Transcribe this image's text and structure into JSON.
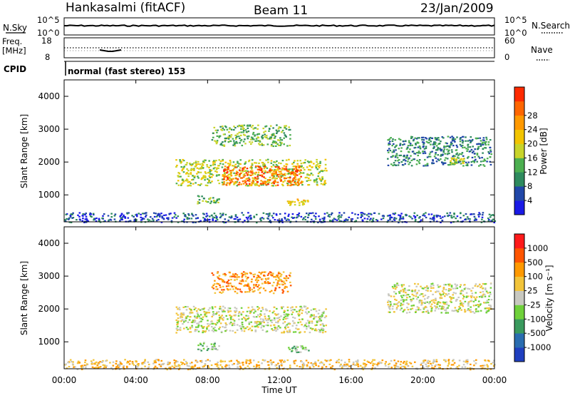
{
  "header": {
    "station": "Hankasalmi (fitACF)",
    "beam": "Beam 11",
    "date": "23/Jan/2009"
  },
  "top_panels": {
    "nsky_label": "N.Sky",
    "nsky_top": "10^5",
    "nsky_bottom": "10^0",
    "nsearch_label": "N.Search",
    "nsearch_top": "10^5",
    "nsearch_bottom": "10^0",
    "freq_label_1": "Freq.",
    "freq_label_2": "[MHz]",
    "freq_top": "18",
    "freq_bottom": "8",
    "nave_top": "60",
    "nave_bottom": "0",
    "nave_label": "Nave",
    "cpid_label": "CPID",
    "cpid_text": "normal (fast stereo) 153"
  },
  "chart_data": [
    {
      "type": "heatmap",
      "name": "power",
      "ylabel": "Slant Range [km]",
      "yticks": [
        "1000",
        "2000",
        "3000",
        "4000"
      ],
      "ylim": [
        180,
        4500
      ],
      "colorbar_label": "Power [dB]",
      "colorbar_ticks": [
        "4",
        "8",
        "12",
        "16",
        "20",
        "24",
        "28"
      ],
      "colors": [
        "#1a1ae6",
        "#2147a8",
        "#2e8a5e",
        "#4caf50",
        "#c8d42a",
        "#f2c400",
        "#ff9900",
        "#ff6600",
        "#ff2a00"
      ],
      "blobs": [
        {
          "t": [
            6.2,
            14.6
          ],
          "r": [
            1300,
            2100
          ],
          "level": 4
        },
        {
          "t": [
            8.8,
            13.2
          ],
          "r": [
            1300,
            1900
          ],
          "level": 7
        },
        {
          "t": [
            8.2,
            12.6
          ],
          "r": [
            2500,
            3150
          ],
          "level": 3
        },
        {
          "t": [
            7.4,
            8.6
          ],
          "r": [
            750,
            1000
          ],
          "level": 3
        },
        {
          "t": [
            12.4,
            13.6
          ],
          "r": [
            700,
            900
          ],
          "level": 5
        },
        {
          "t": [
            18.0,
            23.8
          ],
          "r": [
            1900,
            2800
          ],
          "level": 2
        },
        {
          "t": [
            21.5,
            22.3
          ],
          "r": [
            1950,
            2150
          ],
          "level": 4
        },
        {
          "t": [
            0.0,
            24.0
          ],
          "r": [
            180,
            480
          ],
          "level": 1
        }
      ]
    },
    {
      "type": "heatmap",
      "name": "velocity",
      "ylabel": "Slant Range [km]",
      "yticks": [
        "1000",
        "2000",
        "3000",
        "4000"
      ],
      "ylim": [
        180,
        4500
      ],
      "colorbar_label": "Velocity [m s⁻¹]",
      "colorbar_ticks": [
        "1000",
        "500",
        "100",
        "25",
        "-25",
        "-100",
        "-500",
        "-1000"
      ],
      "colors": [
        "#1f3fbf",
        "#2a6db0",
        "#3a9a5e",
        "#6fd13a",
        "#c8c8c0",
        "#f2c43a",
        "#ff9900",
        "#ff5500",
        "#ff1a1a"
      ],
      "blobs": [
        {
          "t": [
            6.2,
            14.6
          ],
          "r": [
            1300,
            2100
          ],
          "level": 4
        },
        {
          "t": [
            8.2,
            12.6
          ],
          "r": [
            2500,
            3150
          ],
          "level": 6
        },
        {
          "t": [
            7.4,
            8.6
          ],
          "r": [
            750,
            1000
          ],
          "level": 3
        },
        {
          "t": [
            12.4,
            13.6
          ],
          "r": [
            700,
            900
          ],
          "level": 3
        },
        {
          "t": [
            18.0,
            23.8
          ],
          "r": [
            1900,
            2800
          ],
          "level": 4
        },
        {
          "t": [
            0.0,
            24.0
          ],
          "r": [
            180,
            480
          ],
          "level": 5
        }
      ]
    }
  ],
  "xaxis": {
    "label": "Time UT",
    "ticks": [
      "00:00",
      "04:00",
      "08:00",
      "12:00",
      "16:00",
      "20:00",
      "00:00"
    ],
    "xlim_hours": [
      0,
      24
    ]
  }
}
